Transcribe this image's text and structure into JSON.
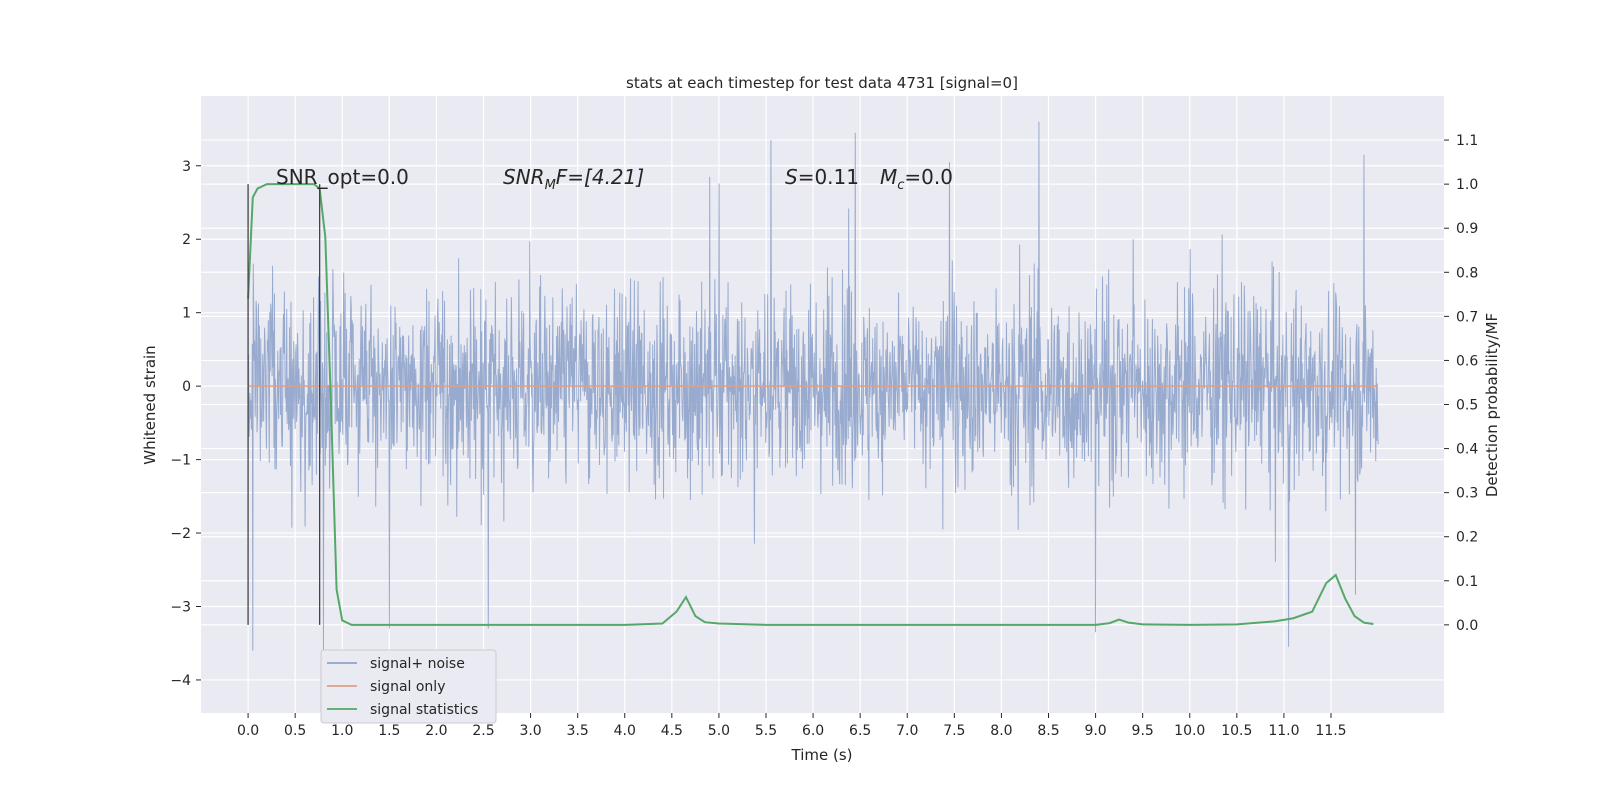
{
  "chart_data": {
    "type": "line",
    "title": "stats at each timestep for test data 4731 [signal=0]",
    "xlabel": "Time (s)",
    "ylabel_left": "Whitened strain",
    "ylabel_right": "Detection probability/MF",
    "xlim": [
      -0.5,
      12.7
    ],
    "ylim_left": [
      -4.45,
      3.95
    ],
    "ylim_right": [
      -0.2,
      1.2
    ],
    "x_ticks": [
      0.0,
      0.5,
      1.0,
      1.5,
      2.0,
      2.5,
      3.0,
      3.5,
      4.0,
      4.5,
      5.0,
      5.5,
      6.0,
      6.5,
      7.0,
      7.5,
      8.0,
      8.5,
      9.0,
      9.5,
      10.0,
      10.5,
      11.0,
      11.5
    ],
    "x_tick_labels": [
      "0.0",
      "0.5",
      "1.0",
      "1.5",
      "2.0",
      "2.5",
      "3.0",
      "3.5",
      "4.0",
      "4.5",
      "5.0",
      "5.5",
      "6.0",
      "6.5",
      "7.0",
      "7.5",
      "8.0",
      "8.5",
      "9.0",
      "9.5",
      "10.0",
      "10.5",
      "11.0",
      "11.5"
    ],
    "y_left_ticks": [
      -4,
      -3,
      -2,
      -1,
      0,
      1,
      2,
      3
    ],
    "y_left_tick_labels": [
      "−4",
      "−3",
      "−2",
      "−1",
      "0",
      "1",
      "2",
      "3"
    ],
    "y_right_ticks": [
      0.0,
      0.1,
      0.2,
      0.3,
      0.4,
      0.5,
      0.6,
      0.7,
      0.8,
      0.9,
      1.0,
      1.1
    ],
    "y_right_tick_labels": [
      "0.0",
      "0.1",
      "0.2",
      "0.3",
      "0.4",
      "0.5",
      "0.6",
      "0.7",
      "0.8",
      "0.9",
      "1.0",
      "1.1"
    ],
    "grid": true,
    "legend_position": "lower-left",
    "annotations": {
      "snr_opt": "SNR_opt=0.0",
      "snr_mf_sym": "SNR",
      "snr_mf_sub": "M",
      "snr_mf_rest": "F=[4.21]",
      "s_sym": "S",
      "s_rest": "=0.11",
      "mc_sym": "M",
      "mc_sub": "c",
      "mc_rest": "=0.0"
    },
    "vertical_markers": [
      {
        "x": 0.0,
        "y_left": [
          -3.25,
          2.75
        ]
      },
      {
        "x": 0.76,
        "y_left": [
          -3.25,
          2.75
        ]
      }
    ],
    "noise_envelope": {
      "t_range": [
        0.0,
        12.0
      ],
      "typical_abs": 1.5,
      "peak_samples": [
        {
          "t": 0.05,
          "v": -3.6
        },
        {
          "t": 0.8,
          "v": -3.6
        },
        {
          "t": 1.5,
          "v": -3.3
        },
        {
          "t": 5.55,
          "v": 3.35
        },
        {
          "t": 6.45,
          "v": 3.45
        },
        {
          "t": 7.45,
          "v": 3.05
        },
        {
          "t": 8.4,
          "v": 3.6
        },
        {
          "t": 9.0,
          "v": -3.35
        },
        {
          "t": 11.05,
          "v": -3.55
        },
        {
          "t": 11.85,
          "v": 3.15
        },
        {
          "t": 2.55,
          "v": -3.3
        },
        {
          "t": 4.9,
          "v": 2.85
        }
      ]
    },
    "series": [
      {
        "name": "signal+ noise",
        "axis": "left",
        "color": "#8fa4cb",
        "kind": "noise"
      },
      {
        "name": "signal only",
        "axis": "left",
        "color": "#dd9f86",
        "x": [
          0.0,
          12.0
        ],
        "y": [
          0.0,
          0.0
        ]
      },
      {
        "name": "signal statistics",
        "axis": "right",
        "color": "#55a868",
        "x": [
          0.0,
          0.05,
          0.1,
          0.2,
          0.3,
          0.5,
          0.7,
          0.76,
          0.82,
          0.88,
          0.94,
          1.0,
          1.1,
          1.5,
          2.0,
          3.0,
          4.0,
          4.4,
          4.55,
          4.65,
          4.75,
          4.85,
          5.0,
          5.5,
          6.0,
          7.0,
          8.0,
          8.5,
          9.0,
          9.15,
          9.25,
          9.35,
          9.5,
          10.0,
          10.5,
          10.9,
          11.1,
          11.3,
          11.45,
          11.55,
          11.65,
          11.75,
          11.85,
          11.95
        ],
        "y": [
          0.74,
          0.97,
          0.99,
          1.0,
          1.0,
          1.0,
          1.0,
          0.99,
          0.88,
          0.5,
          0.08,
          0.01,
          0.0,
          0.0,
          0.0,
          0.0,
          0.0,
          0.003,
          0.03,
          0.063,
          0.02,
          0.006,
          0.003,
          0.0,
          0.0,
          0.0,
          0.0,
          0.0,
          0.0,
          0.004,
          0.012,
          0.005,
          0.001,
          0.0,
          0.001,
          0.008,
          0.015,
          0.03,
          0.095,
          0.113,
          0.06,
          0.02,
          0.005,
          0.002
        ]
      }
    ]
  }
}
